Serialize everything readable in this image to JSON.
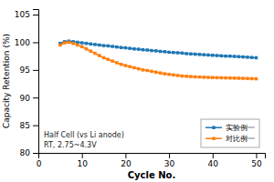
{
  "chart_data": {
    "type": "line",
    "xlabel": "Cycle No.",
    "ylabel": "Capacity Retention (%)",
    "annotations": [
      "Half Cell (vs Li anode)",
      "RT, 2.75~4.3V"
    ],
    "x": [
      5,
      6,
      7,
      8,
      9,
      10,
      11,
      12,
      13,
      14,
      15,
      16,
      17,
      18,
      19,
      20,
      21,
      22,
      23,
      24,
      25,
      26,
      27,
      28,
      29,
      30,
      31,
      32,
      33,
      34,
      35,
      36,
      37,
      38,
      39,
      40,
      41,
      42,
      43,
      44,
      45,
      46,
      47,
      48,
      49,
      50
    ],
    "series": [
      {
        "name": "实验例一",
        "marker": "square",
        "values": [
          99.8,
          100.1,
          100.2,
          100.1,
          100.0,
          99.9,
          99.8,
          99.7,
          99.6,
          99.5,
          99.4,
          99.35,
          99.25,
          99.15,
          99.05,
          99.0,
          98.9,
          98.8,
          98.75,
          98.65,
          98.6,
          98.5,
          98.45,
          98.35,
          98.3,
          98.2,
          98.15,
          98.1,
          98.05,
          97.95,
          97.9,
          97.85,
          97.8,
          97.75,
          97.7,
          97.65,
          97.6,
          97.55,
          97.5,
          97.5,
          97.45,
          97.4,
          97.35,
          97.3,
          97.25,
          97.2
        ]
      },
      {
        "name": "对比例一",
        "marker": "square",
        "values": [
          99.5,
          99.9,
          100.0,
          99.8,
          99.5,
          99.2,
          98.8,
          98.4,
          98.0,
          97.6,
          97.2,
          96.9,
          96.6,
          96.3,
          96.0,
          95.8,
          95.6,
          95.4,
          95.2,
          95.0,
          94.9,
          94.75,
          94.6,
          94.45,
          94.3,
          94.2,
          94.1,
          94.0,
          93.9,
          93.85,
          93.8,
          93.75,
          93.72,
          93.68,
          93.65,
          93.62,
          93.6,
          93.58,
          93.56,
          93.54,
          93.52,
          93.5,
          93.48,
          93.45,
          93.42,
          93.4
        ]
      }
    ],
    "xlim": [
      0,
      52
    ],
    "ylim": [
      80,
      106
    ],
    "xticks": [
      0,
      10,
      20,
      30,
      40,
      50
    ],
    "yticks": [
      80,
      85,
      90,
      95,
      100,
      105
    ],
    "grid": false,
    "legend": "lower right"
  }
}
